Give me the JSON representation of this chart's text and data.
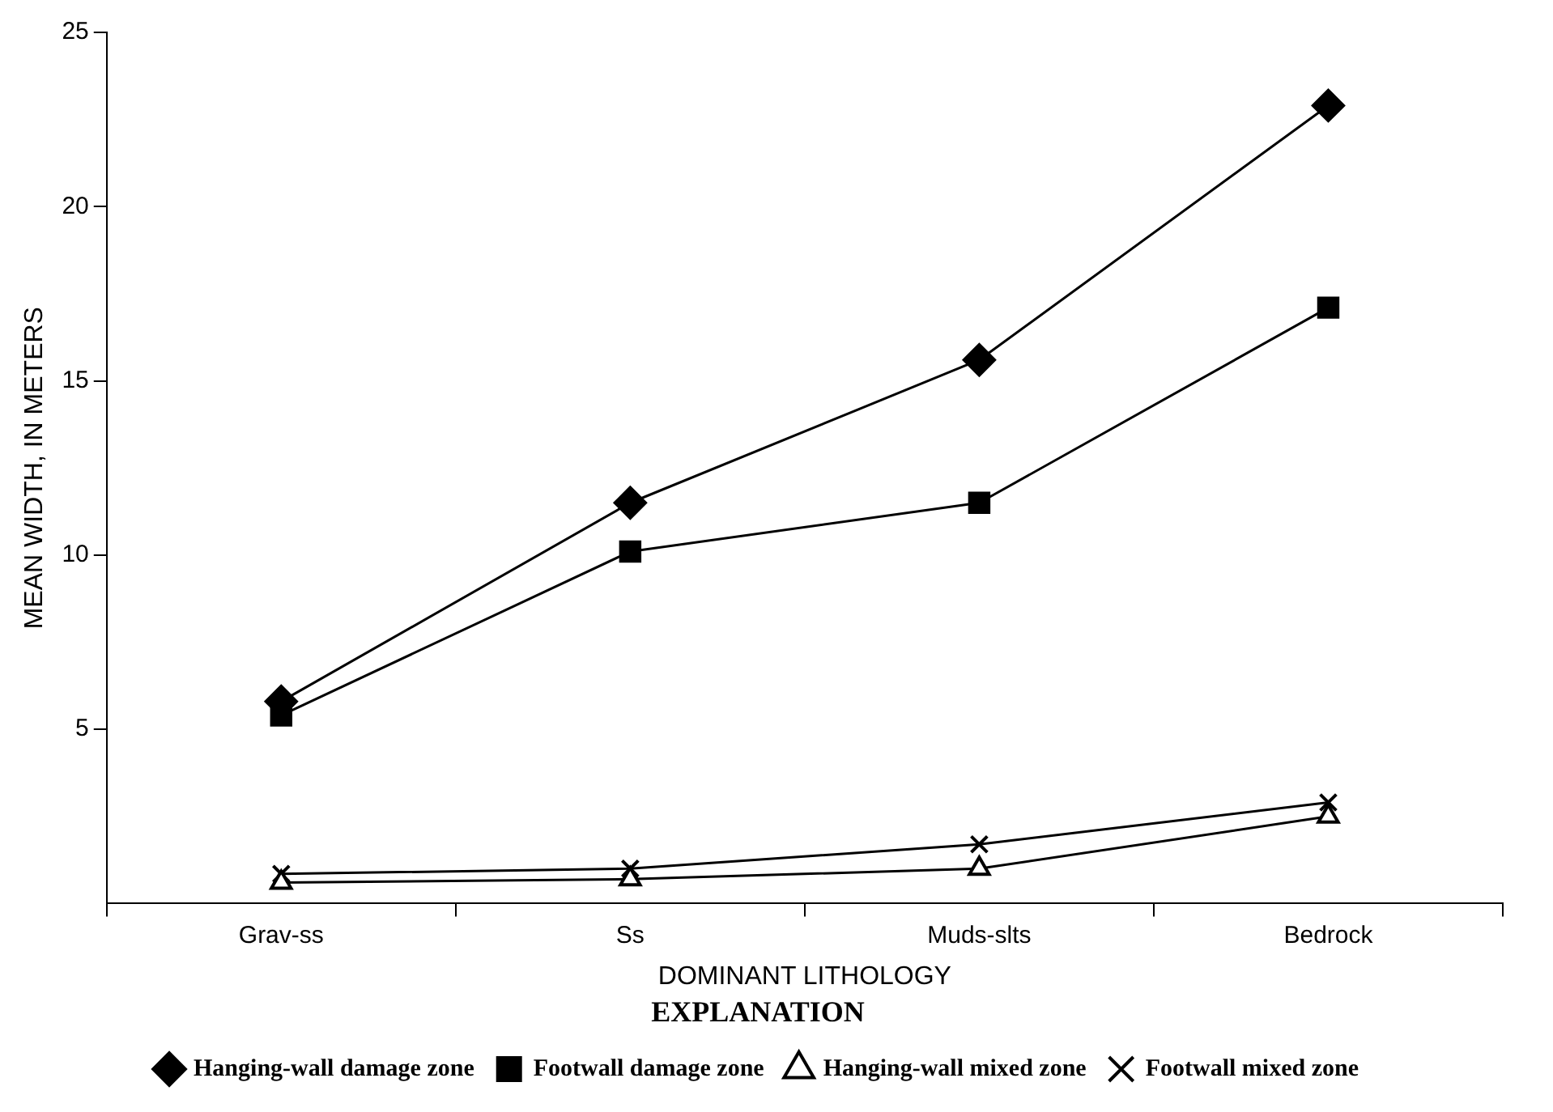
{
  "chart_data": {
    "type": "line",
    "xlabel": "DOMINANT LITHOLOGY",
    "ylabel": "MEAN WIDTH, IN METERS",
    "legend_title": "EXPLANATION",
    "categories": [
      "Grav-ss",
      "Ss",
      "Muds-slts",
      "Bedrock"
    ],
    "ylim": [
      0,
      25
    ],
    "yticks": [
      5,
      10,
      15,
      20,
      25
    ],
    "grid": false,
    "legend": "bottom",
    "line_style": "solid",
    "series": [
      {
        "name": "Hanging-wall damage zone",
        "color": "#000000",
        "marker": "diamond",
        "values": [
          5.8,
          11.5,
          15.6,
          22.9
        ]
      },
      {
        "name": "Footwall damage zone",
        "color": "#000000",
        "marker": "square",
        "values": [
          5.4,
          10.1,
          11.5,
          17.1
        ]
      },
      {
        "name": "Hanging-wall mixed zone",
        "color": "#000000",
        "marker": "triangle",
        "values": [
          0.6,
          0.7,
          1.0,
          2.5
        ]
      },
      {
        "name": "Footwall mixed zone",
        "color": "#000000",
        "marker": "cross",
        "values": [
          0.85,
          1.0,
          1.7,
          2.9
        ]
      }
    ]
  }
}
